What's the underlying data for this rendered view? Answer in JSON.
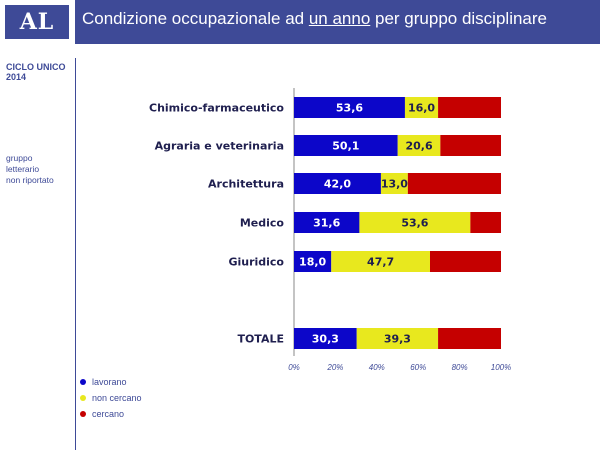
{
  "header": {
    "logo": "AL",
    "title_parts": [
      "Condizione occupazionale ad ",
      "un anno",
      " per gruppo disciplinare"
    ]
  },
  "sidebar": {
    "cycle_line1": "CICLO UNICO",
    "cycle_line2": "2014",
    "note_lines": [
      "gruppo",
      "letterario",
      "non riportato"
    ]
  },
  "colors": {
    "header_bg": "#3e4a97",
    "lavorano": "#0c06c9",
    "non_cercano": "#e8e81e",
    "cercano": "#c50000"
  },
  "chart_data": {
    "type": "bar",
    "orientation": "horizontal",
    "stacked": "100%",
    "categories": [
      "Chimico-farmaceutico",
      "Agraria e veterinaria",
      "Architettura",
      "Medico",
      "Giuridico",
      "TOTALE"
    ],
    "series": [
      {
        "name": "lavorano",
        "values": [
          53.6,
          50.1,
          42.0,
          31.6,
          18.0,
          30.3
        ],
        "labels": [
          "53,6",
          "50,1",
          "42,0",
          "31,6",
          "18,0",
          "30,3"
        ],
        "color": "#0c06c9"
      },
      {
        "name": "non cercano",
        "values": [
          16.0,
          20.6,
          13.0,
          53.6,
          47.7,
          39.3
        ],
        "labels": [
          "16,0",
          "20,6",
          "13,0",
          "53,6",
          "47,7",
          "39,3"
        ],
        "color": "#e8e81e"
      },
      {
        "name": "cercano",
        "values": [
          30.4,
          29.3,
          45.0,
          14.8,
          34.3,
          30.4
        ],
        "labels": [
          "",
          "",
          "",
          "",
          "",
          ""
        ],
        "color": "#c50000"
      }
    ],
    "xlim": [
      0,
      100
    ],
    "x_ticks": [
      0,
      20,
      40,
      60,
      80,
      100
    ],
    "x_tick_labels": [
      "0%",
      "20%",
      "40%",
      "60%",
      "80%",
      "100%"
    ],
    "grid": false,
    "legend_position": "bottom-left"
  }
}
